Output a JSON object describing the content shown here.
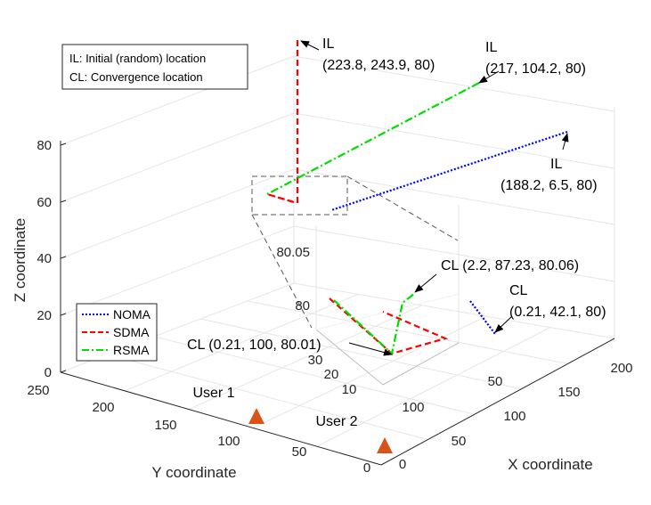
{
  "chart_data": {
    "type": "line",
    "projection": "3d",
    "xlabel": "X coordinate",
    "ylabel": "Y coordinate",
    "zlabel": "Z coordinate",
    "xlim": [
      0,
      230
    ],
    "ylim": [
      0,
      250
    ],
    "zlim": [
      0,
      85
    ],
    "x_ticks": [
      "0",
      "50",
      "100",
      "150",
      "200"
    ],
    "y_ticks": [
      "0",
      "50",
      "100",
      "150",
      "200",
      "250"
    ],
    "z_ticks": [
      "0",
      "20",
      "40",
      "60",
      "80"
    ],
    "series": [
      {
        "name": "NOMA",
        "color": "#0000ff",
        "style": "dotted",
        "points": [
          [
            188.2,
            6.5,
            80
          ],
          [
            0.21,
            42.1,
            80
          ]
        ]
      },
      {
        "name": "SDMA",
        "color": "#ff0000",
        "style": "dashed",
        "points": [
          [
            223.8,
            243.9,
            80
          ],
          [
            223.8,
            243.9,
            60
          ],
          [
            0.21,
            100,
            80.01
          ],
          [
            0.21,
            100,
            65
          ]
        ]
      },
      {
        "name": "RSMA",
        "color": "#00dd00",
        "style": "dashdot",
        "points": [
          [
            217,
            104.2,
            80
          ],
          [
            0.21,
            100,
            80.01
          ],
          [
            2.2,
            87.23,
            80.06
          ]
        ]
      }
    ],
    "markers": [
      {
        "label": "User 1",
        "x": 0,
        "y": 110,
        "z": 0,
        "color": "#d95319"
      },
      {
        "label": "User 2",
        "x": 0,
        "y": 0,
        "z": 0,
        "color": "#d95319"
      }
    ],
    "inset": {
      "z_ticks": [
        "80",
        "80.05"
      ],
      "y_ticks": [
        "10",
        "20",
        "30"
      ],
      "x_ticks": [
        "50",
        "100"
      ]
    },
    "annotations": [
      {
        "id": "il_sdma",
        "lines": [
          "IL",
          "(223.8, 243.9, 80)"
        ]
      },
      {
        "id": "il_rsma",
        "lines": [
          "IL",
          "(217, 104.2, 80)"
        ]
      },
      {
        "id": "il_noma",
        "lines": [
          "IL",
          "(188.2, 6.5, 80)"
        ]
      },
      {
        "id": "cl_rsma",
        "lines": [
          "CL (2.2, 87.23, 80.06)"
        ]
      },
      {
        "id": "cl_noma",
        "lines": [
          "CL",
          "(0.21, 42.1, 80)"
        ]
      },
      {
        "id": "cl_sdma",
        "lines": [
          "CL (0.21, 100, 80.01)"
        ]
      }
    ],
    "info_box": [
      "IL: Initial (random) location",
      "CL: Convergence location"
    ],
    "legend": [
      "NOMA",
      "SDMA",
      "RSMA"
    ],
    "legend_position": "left"
  }
}
